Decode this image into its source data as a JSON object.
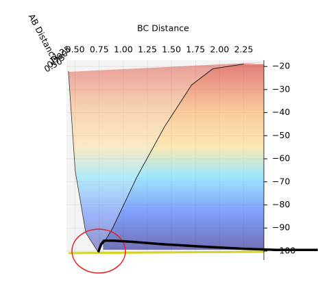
{
  "chart_data": {
    "type": "surface3d",
    "xlabel": "BC Distance",
    "ylabel": "AB Distance",
    "xlim": [
      0.41,
      2.46
    ],
    "xticks": [
      {
        "value": 0.5,
        "label": "0.50"
      },
      {
        "value": 0.75,
        "label": "0.75"
      },
      {
        "value": 1,
        "label": "1.00"
      },
      {
        "value": 1.25,
        "label": "1.25"
      },
      {
        "value": 1.5,
        "label": "1.50"
      },
      {
        "value": 1.75,
        "label": "1.75"
      },
      {
        "value": 2,
        "label": "2.00"
      },
      {
        "value": 2.25,
        "label": "2.25"
      }
    ],
    "yticks": [
      {
        "value": 0.5,
        "label": "0.50"
      },
      {
        "value": 0.75,
        "label": "0.75"
      },
      {
        "value": 1,
        "label": "1.00"
      },
      {
        "value": 1.25,
        "label": "1.25"
      }
    ],
    "zlim": [
      -100.9,
      -17.3
    ],
    "zticks": [
      {
        "value": -20,
        "label": "−20"
      },
      {
        "value": -30,
        "label": "−30"
      },
      {
        "value": -40,
        "label": "−40"
      },
      {
        "value": -50,
        "label": "−50"
      },
      {
        "value": -60,
        "label": "−60"
      },
      {
        "value": -70,
        "label": "−70"
      },
      {
        "value": -80,
        "label": "−80"
      },
      {
        "value": -90,
        "label": "−90"
      },
      {
        "value": -100,
        "label": "−100"
      }
    ],
    "surface": {
      "wall_x": [
        0.43,
        0.5,
        0.61,
        0.74
      ],
      "wall_z": [
        -22,
        -65,
        -92,
        -100.5
      ],
      "ridge_x": [
        0.79,
        0.89,
        1.14,
        1.43,
        1.71,
        1.93,
        2.25
      ],
      "ridge_z": [
        -97,
        -90,
        -68,
        -46,
        -28,
        -21,
        -19
      ]
    },
    "series": [
      {
        "name": "trajectory",
        "color": "#000000",
        "x": [
          0.74,
          0.77,
          0.8,
          0.9,
          1.1,
          1.4,
          1.8,
          2.25,
          2.6,
          3.02
        ],
        "values": [
          -100.5,
          -97,
          -95.5,
          -95.5,
          -96,
          -97,
          -98,
          -99,
          -99.5,
          -99.5
        ]
      }
    ]
  }
}
